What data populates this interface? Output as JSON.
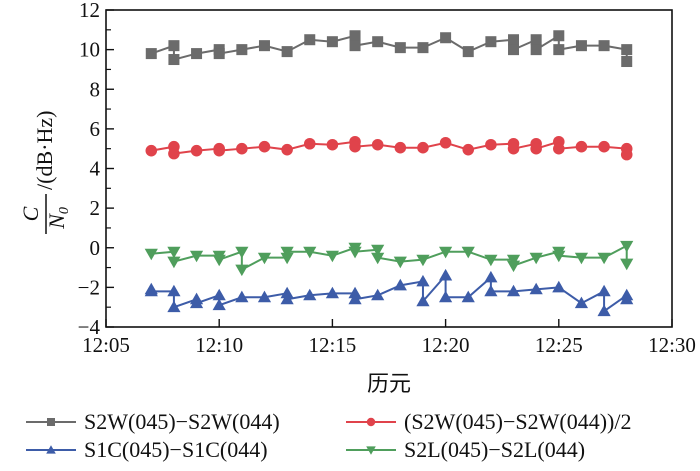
{
  "chart_data": {
    "type": "line",
    "title": "",
    "xlabel": "历元",
    "ylabel": {
      "numerator": "C",
      "denominator": "N",
      "denominator_subscript": "0",
      "unit": "/(dB·Hz)"
    },
    "xlim": [
      "12:05",
      "12:30"
    ],
    "xlim_minutes": [
      5,
      30
    ],
    "ylim": [
      -4,
      12
    ],
    "x_ticks": [
      "12:05",
      "12:10",
      "12:15",
      "12:20",
      "12:25",
      "12:30"
    ],
    "x_tick_minutes": [
      5,
      10,
      15,
      20,
      25,
      30
    ],
    "y_ticks": [
      -4,
      -2,
      0,
      2,
      4,
      6,
      8,
      10,
      12
    ],
    "y_tick_labels": [
      "−4",
      "−2",
      "0",
      "2",
      "4",
      "6",
      "8",
      "10",
      "12"
    ],
    "grid": false,
    "legend_placement": "bottom",
    "series": [
      {
        "name": "S2W(045)−S2W(044)",
        "color": "#6b6b6b",
        "marker": "square",
        "x_minutes": [
          7,
          8,
          8,
          9,
          10,
          10,
          11,
          12,
          13,
          14,
          15,
          16,
          16,
          17,
          18,
          19,
          20,
          21,
          22,
          23,
          23,
          24,
          24,
          25,
          25,
          26,
          27,
          28,
          28
        ],
        "values": [
          9.8,
          10.2,
          9.5,
          9.8,
          10.0,
          9.8,
          10.0,
          10.2,
          9.9,
          10.5,
          10.4,
          10.7,
          10.2,
          10.4,
          10.1,
          10.1,
          10.6,
          9.9,
          10.4,
          10.5,
          10.0,
          10.5,
          10.0,
          10.7,
          10.0,
          10.2,
          10.2,
          10.0,
          9.4
        ]
      },
      {
        "name": "(S2W(045)−S2W(044))/2",
        "color": "#e0434b",
        "marker": "circle",
        "x_minutes": [
          7,
          8,
          8,
          9,
          10,
          10,
          11,
          12,
          13,
          14,
          15,
          16,
          16,
          17,
          18,
          19,
          20,
          21,
          22,
          23,
          23,
          24,
          24,
          25,
          25,
          26,
          27,
          28,
          28
        ],
        "values": [
          4.9,
          5.1,
          4.75,
          4.9,
          5.0,
          4.9,
          5.0,
          5.1,
          4.95,
          5.25,
          5.2,
          5.35,
          5.1,
          5.2,
          5.05,
          5.05,
          5.3,
          4.95,
          5.2,
          5.25,
          5.0,
          5.25,
          5.0,
          5.35,
          5.0,
          5.1,
          5.1,
          5.0,
          4.7
        ]
      },
      {
        "name": "S1C(045)−S1C(044)",
        "color": "#3d5ca8",
        "marker": "triangle-up",
        "x_minutes": [
          7,
          7,
          8,
          8,
          9,
          9,
          10,
          10,
          11,
          12,
          13,
          13,
          14,
          15,
          16,
          16,
          17,
          18,
          19,
          19,
          20,
          20,
          21,
          22,
          22,
          23,
          24,
          25,
          26,
          27,
          27,
          28,
          28
        ],
        "values": [
          -2.1,
          -2.2,
          -2.2,
          -3.0,
          -2.6,
          -2.8,
          -2.4,
          -2.9,
          -2.5,
          -2.5,
          -2.3,
          -2.6,
          -2.4,
          -2.3,
          -2.3,
          -2.6,
          -2.4,
          -1.9,
          -1.7,
          -2.7,
          -1.4,
          -2.5,
          -2.5,
          -1.5,
          -2.2,
          -2.2,
          -2.1,
          -2.0,
          -2.8,
          -2.2,
          -3.2,
          -2.4,
          -2.6
        ]
      },
      {
        "name": "S2L(045)−S2L(044)",
        "color": "#4f9e5c",
        "marker": "triangle-down",
        "x_minutes": [
          7,
          8,
          8,
          9,
          10,
          10,
          11,
          11,
          12,
          13,
          13,
          14,
          15,
          16,
          16,
          17,
          17,
          18,
          19,
          20,
          21,
          22,
          23,
          23,
          24,
          25,
          25,
          26,
          27,
          28,
          28
        ],
        "values": [
          -0.3,
          -0.2,
          -0.7,
          -0.4,
          -0.4,
          -0.6,
          -0.2,
          -1.1,
          -0.5,
          -0.5,
          -0.2,
          -0.2,
          -0.4,
          0.0,
          -0.2,
          -0.1,
          -0.5,
          -0.7,
          -0.6,
          -0.2,
          -0.2,
          -0.6,
          -0.6,
          -0.9,
          -0.5,
          -0.2,
          -0.4,
          -0.5,
          -0.5,
          0.1,
          -0.8
        ]
      }
    ]
  }
}
